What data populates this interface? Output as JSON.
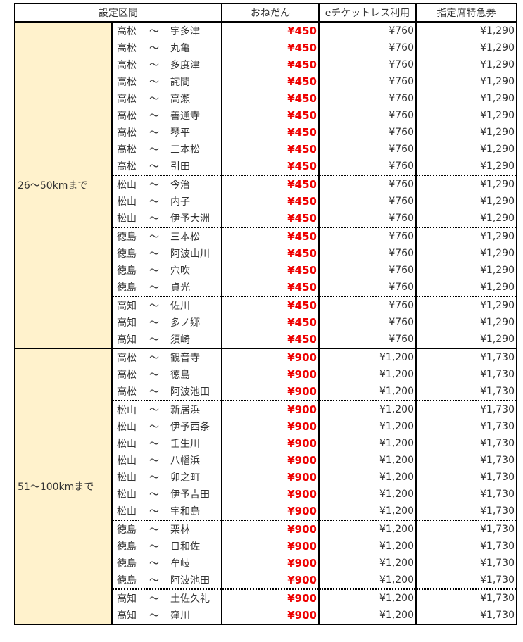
{
  "header": {
    "section": "設定区間",
    "onedan": "おねだん",
    "eticket": "eチケットレス利用",
    "reserved": "指定席特急券"
  },
  "tilde": "～",
  "groups": [
    {
      "label": "26～50kmまで",
      "price": "¥450",
      "eticket": "¥760",
      "reserved": "¥1,290",
      "origins": [
        {
          "from": "高松",
          "to": [
            "宇多津",
            "丸亀",
            "多度津",
            "詫間",
            "高瀬",
            "善通寺",
            "琴平",
            "三本松",
            "引田"
          ]
        },
        {
          "from": "松山",
          "to": [
            "今治",
            "内子",
            "伊予大洲"
          ]
        },
        {
          "from": "徳島",
          "to": [
            "三本松",
            "阿波山川",
            "穴吹",
            "貞光"
          ]
        },
        {
          "from": "高知",
          "to": [
            "佐川",
            "多ノ郷",
            "須崎"
          ]
        }
      ]
    },
    {
      "label": "51～100kmまで",
      "price": "¥900",
      "eticket": "¥1,200",
      "reserved": "¥1,730",
      "origins": [
        {
          "from": "高松",
          "to": [
            "観音寺",
            "徳島",
            "阿波池田"
          ]
        },
        {
          "from": "松山",
          "to": [
            "新居浜",
            "伊予西条",
            "壬生川",
            "八幡浜",
            "卯之町",
            "伊予吉田",
            "宇和島"
          ]
        },
        {
          "from": "徳島",
          "to": [
            "栗林",
            "日和佐",
            "牟岐",
            "阿波池田"
          ]
        },
        {
          "from": "高知",
          "to": [
            "土佐久礼",
            "窪川"
          ]
        }
      ]
    }
  ]
}
